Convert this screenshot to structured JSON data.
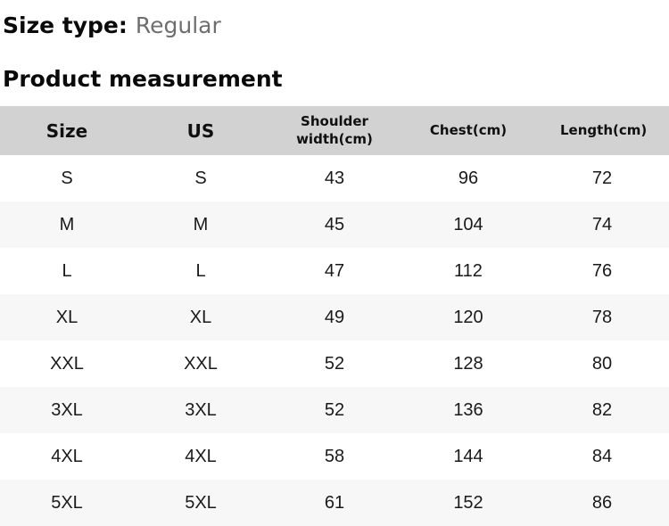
{
  "size_type": {
    "label": "Size type:",
    "value": "Regular"
  },
  "section_title": "Product measurement",
  "table": {
    "columns": [
      {
        "key": "size",
        "label": "Size"
      },
      {
        "key": "us",
        "label": "US"
      },
      {
        "key": "shoulder",
        "label": "Shoulder width(cm)"
      },
      {
        "key": "chest",
        "label": "Chest(cm)"
      },
      {
        "key": "length",
        "label": "Length(cm)"
      }
    ],
    "rows": [
      [
        "S",
        "S",
        "43",
        "96",
        "72"
      ],
      [
        "M",
        "M",
        "45",
        "104",
        "74"
      ],
      [
        "L",
        "L",
        "47",
        "112",
        "76"
      ],
      [
        "XL",
        "XL",
        "49",
        "120",
        "78"
      ],
      [
        "XXL",
        "XXL",
        "52",
        "128",
        "80"
      ],
      [
        "3XL",
        "3XL",
        "52",
        "136",
        "82"
      ],
      [
        "4XL",
        "4XL",
        "58",
        "144",
        "84"
      ],
      [
        "5XL",
        "5XL",
        "61",
        "152",
        "86"
      ]
    ]
  },
  "colors": {
    "header_bg": "#d2d2d2",
    "row_alt_bg": "#f7f7f7",
    "row_bg": "#ffffff",
    "muted_text": "#6e6e6e",
    "text": "#111111"
  }
}
